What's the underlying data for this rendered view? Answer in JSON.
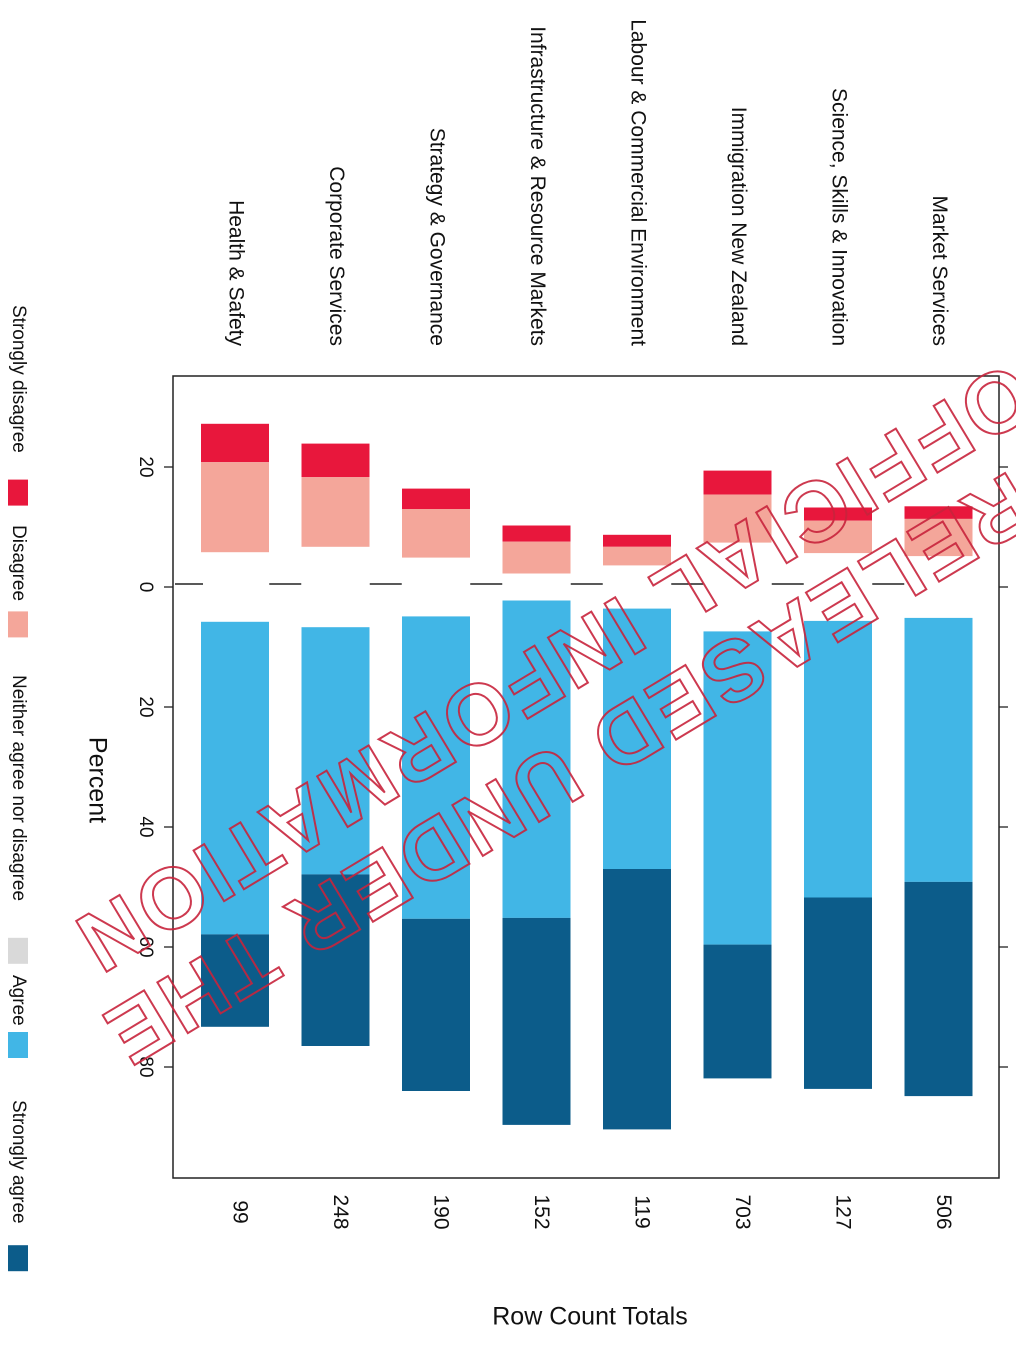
{
  "chart_data": {
    "type": "bar",
    "orientation": "diverging-stacked",
    "categories": [
      "Health & Safety",
      "Corporate Services",
      "Strategy & Governance",
      "Infrastructure & Resource Markets",
      "Labour & Commercial Environment",
      "Immigration New Zealand",
      "Science, Skills & Innovation",
      "Market Services"
    ],
    "row_totals": [
      "99",
      "248",
      "190",
      "152",
      "119",
      "703",
      "127",
      "506"
    ],
    "series": [
      {
        "name": "Strongly disagree",
        "color": "#e8173c",
        "side": "negative",
        "values": [
          6.4,
          5.6,
          3.4,
          2.7,
          2.0,
          4.0,
          2.2,
          2.1
        ]
      },
      {
        "name": "Disagree",
        "color": "#f4a69a",
        "side": "negative",
        "values": [
          15.0,
          11.6,
          8.1,
          5.3,
          3.1,
          8.0,
          5.4,
          6.2
        ]
      },
      {
        "name": "Neither agree nor disagree",
        "color": "#d9d9d9",
        "side": "split",
        "values": [
          11.6,
          13.4,
          9.8,
          4.5,
          7.2,
          14.8,
          11.3,
          10.3
        ]
      },
      {
        "name": "Agree",
        "color": "#41b6e6",
        "side": "positive",
        "values": [
          52.1,
          41.2,
          50.4,
          52.9,
          43.4,
          52.2,
          46.1,
          44.0
        ]
      },
      {
        "name": "Strongly agree",
        "color": "#0c5c8a",
        "side": "positive",
        "values": [
          15.4,
          28.6,
          28.7,
          34.5,
          43.4,
          22.3,
          31.9,
          35.7
        ]
      }
    ],
    "xlabel": "Percent",
    "x2label": "Row Count Totals",
    "xlim": [
      -30,
      100
    ],
    "ticks": [
      {
        "value": -20,
        "label": "20"
      },
      {
        "value": 0,
        "label": "0"
      },
      {
        "value": 20,
        "label": "20"
      },
      {
        "value": 40,
        "label": "40"
      },
      {
        "value": 60,
        "label": "60"
      },
      {
        "value": 80,
        "label": "80"
      }
    ],
    "legend": {
      "position": "bottom",
      "items": [
        "Strongly disagree",
        "Disagree",
        "Neither agree nor disagree",
        "Agree",
        "Strongly agree"
      ]
    }
  },
  "stamp": {
    "lines": [
      "RELEASED UNDER THE",
      "OFFICIAL INFORMATION"
    ],
    "color": "#c8243c"
  }
}
